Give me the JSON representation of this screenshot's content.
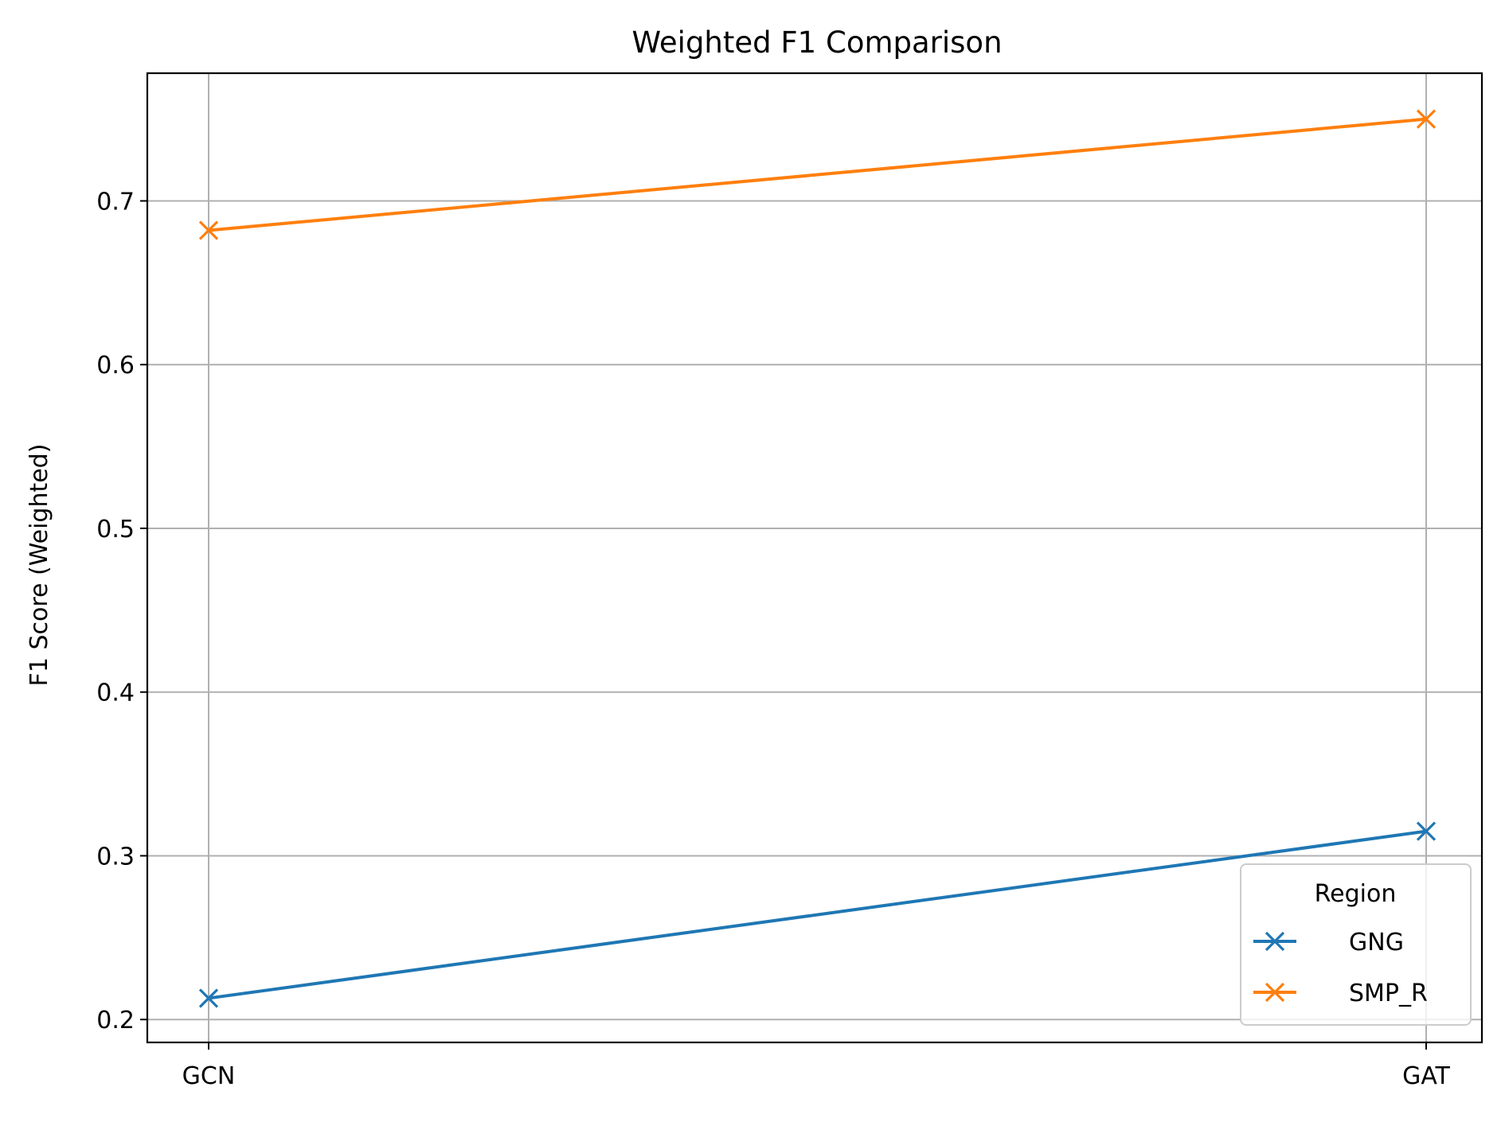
{
  "chart_data": {
    "type": "line",
    "title": "Weighted F1 Comparison",
    "xlabel": "",
    "ylabel": "F1 Score (Weighted)",
    "categories": [
      "GCN",
      "GAT"
    ],
    "ylim": [
      0.186,
      0.778
    ],
    "yticks": [
      0.2,
      0.3,
      0.4,
      0.5,
      0.6,
      0.7
    ],
    "ytick_labels": [
      "0.2",
      "0.3",
      "0.4",
      "0.5",
      "0.6",
      "0.7"
    ],
    "grid": true,
    "legend": {
      "title": "Region",
      "placement": "lower-right"
    },
    "series": [
      {
        "name": "GNG",
        "values": [
          0.213,
          0.315
        ],
        "color": "#1f77b4",
        "marker": "x"
      },
      {
        "name": "SMP_R",
        "values": [
          0.682,
          0.75
        ],
        "color": "#ff7f0e",
        "marker": "x"
      }
    ]
  }
}
